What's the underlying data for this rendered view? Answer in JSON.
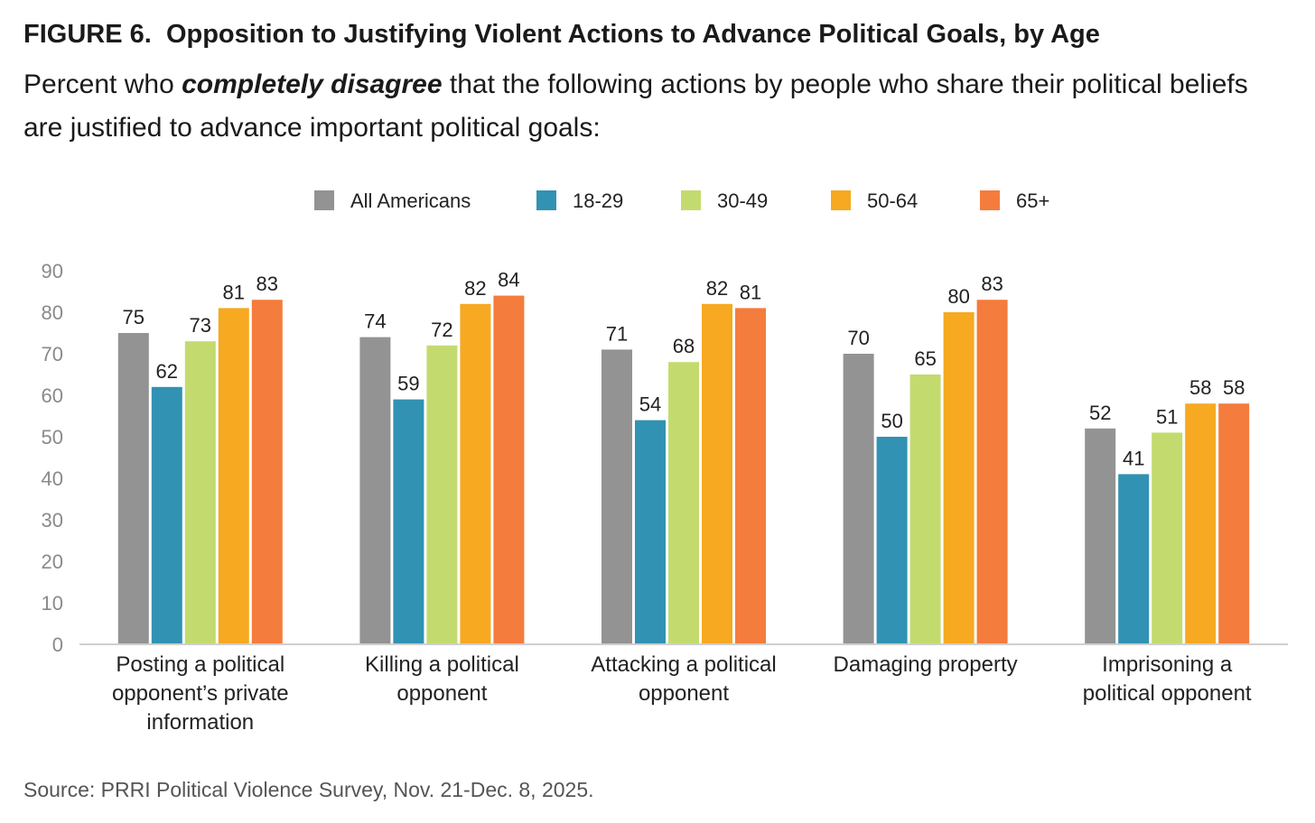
{
  "figure_label": "FIGURE 6.",
  "title": "Opposition to Justifying Violent Actions to Advance Political Goals, by Age",
  "subtitle_prefix": "Percent who ",
  "subtitle_emphasis": "completely disagree",
  "subtitle_suffix": " that the following actions by people who share their political beliefs are justified to advance important political goals:",
  "source": "Source: PRRI Political Violence Survey, Nov. 21-Dec. 8, 2025.",
  "chart_data": {
    "type": "bar",
    "title": "Opposition to Justifying Violent Actions to Advance Political Goals, by Age",
    "xlabel": "",
    "ylabel": "",
    "ylim": [
      0,
      90
    ],
    "yticks": [
      0,
      10,
      20,
      30,
      40,
      50,
      60,
      70,
      80,
      90
    ],
    "grid": false,
    "legend_position": "top-center",
    "categories": [
      [
        "Posting a political",
        "opponent’s private",
        "information"
      ],
      [
        "Killing a political",
        "opponent"
      ],
      [
        "Attacking a political",
        "opponent"
      ],
      [
        "Damaging property"
      ],
      [
        "Imprisoning a",
        "political opponent"
      ]
    ],
    "series": [
      {
        "name": "All Americans",
        "color": "#939393",
        "values": [
          75,
          74,
          71,
          70,
          52
        ]
      },
      {
        "name": "18-29",
        "color": "#3192b3",
        "values": [
          62,
          59,
          54,
          50,
          41
        ]
      },
      {
        "name": "30-49",
        "color": "#c3db6e",
        "values": [
          73,
          72,
          68,
          65,
          51
        ]
      },
      {
        "name": "50-64",
        "color": "#f6a921",
        "values": [
          81,
          82,
          82,
          80,
          58
        ]
      },
      {
        "name": "65+",
        "color": "#f47c3c",
        "values": [
          83,
          84,
          81,
          83,
          58
        ]
      }
    ]
  }
}
